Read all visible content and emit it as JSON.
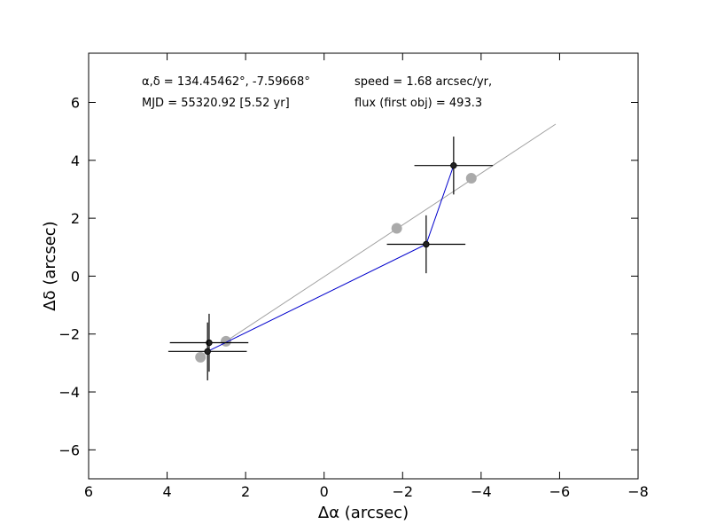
{
  "chart_data": {
    "type": "scatter",
    "xlabel": "Δα (arcsec)",
    "ylabel": "Δδ (arcsec)",
    "xlim": [
      6,
      -8
    ],
    "ylim": [
      -7,
      7.7
    ],
    "x_ticks": [
      6,
      4,
      2,
      0,
      -2,
      -4,
      -6,
      -8
    ],
    "y_ticks": [
      -6,
      -4,
      -2,
      0,
      2,
      4,
      6
    ],
    "x_tick_labels": [
      "6",
      "4",
      "2",
      "0",
      "−2",
      "−4",
      "−6",
      "−8"
    ],
    "y_tick_labels": [
      "−6",
      "−4",
      "−2",
      "0",
      "2",
      "4",
      "6"
    ],
    "grid": false,
    "annotations": [
      "α,δ = 134.45462°, -7.59668°",
      "MJD = 55320.92 [5.52 yr]",
      "speed = 1.68 arcsec/yr,",
      "flux (first obj) = 493.3"
    ],
    "series": [
      {
        "kind": "fit_line",
        "color": "#a0a0a0",
        "x": [
          2.5,
          -5.9
        ],
        "y": [
          -2.25,
          5.25
        ]
      },
      {
        "kind": "predicted_points",
        "color": "#aaaaaa",
        "x": [
          3.15,
          2.5,
          -1.85,
          -3.75
        ],
        "y": [
          -2.8,
          -2.25,
          1.65,
          3.38
        ]
      },
      {
        "kind": "observed_path",
        "color": "#0000cc",
        "x": [
          2.97,
          -2.6,
          -3.3
        ],
        "y": [
          -2.6,
          1.1,
          3.82
        ]
      },
      {
        "kind": "observations",
        "color": "#000000",
        "x": [
          2.93,
          2.97,
          -2.6,
          -3.3
        ],
        "y": [
          -2.3,
          -2.6,
          1.1,
          3.82
        ],
        "x_err": [
          1.0,
          1.0,
          1.0,
          1.0
        ],
        "y_err": [
          1.0,
          1.0,
          1.0,
          1.0
        ]
      }
    ]
  }
}
